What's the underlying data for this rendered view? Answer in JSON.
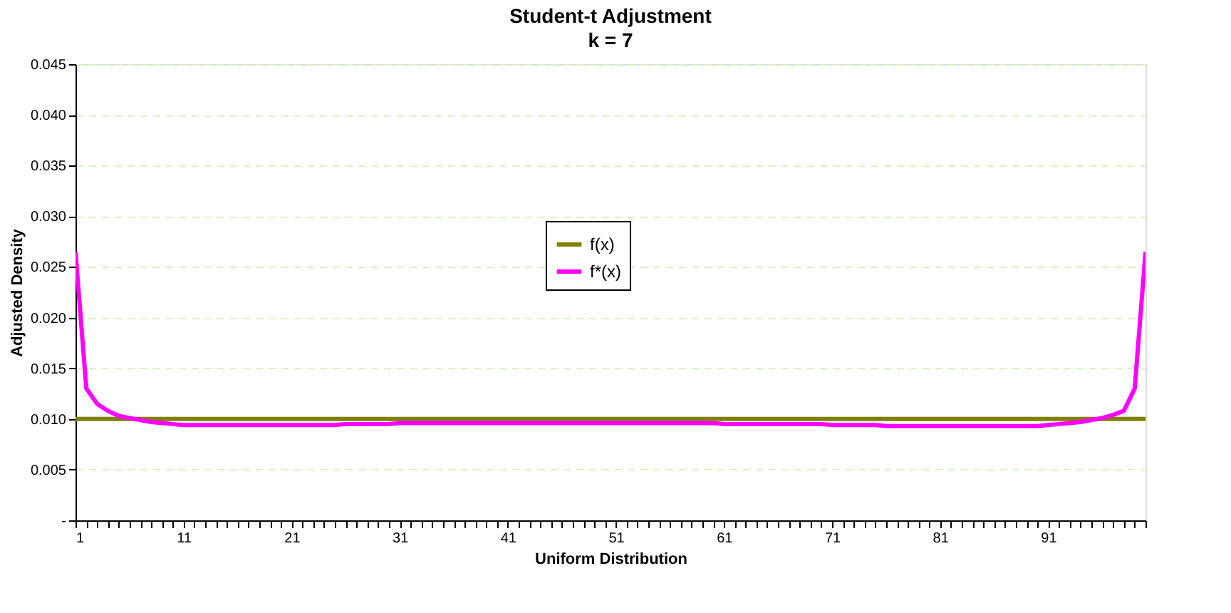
{
  "chart_data": {
    "type": "line",
    "title": "Student-t Adjustment",
    "subtitle": "k = 7",
    "xlabel": "Uniform Distribution",
    "ylabel": "Adjusted Density",
    "categories": [
      "1",
      null,
      null,
      null,
      null,
      null,
      null,
      null,
      null,
      null,
      "11",
      null,
      null,
      null,
      null,
      null,
      null,
      null,
      null,
      null,
      "21",
      null,
      null,
      null,
      null,
      null,
      null,
      null,
      null,
      null,
      "31",
      null,
      null,
      null,
      null,
      null,
      null,
      null,
      null,
      null,
      "41",
      null,
      null,
      null,
      null,
      null,
      null,
      null,
      null,
      null,
      "51",
      null,
      null,
      null,
      null,
      null,
      null,
      null,
      null,
      null,
      "61",
      null,
      null,
      null,
      null,
      null,
      null,
      null,
      null,
      null,
      "71",
      null,
      null,
      null,
      null,
      null,
      null,
      null,
      null,
      null,
      "81",
      null,
      null,
      null,
      null,
      null,
      null,
      null,
      null,
      null,
      "91",
      null,
      null,
      null,
      null,
      null,
      null,
      null,
      null,
      null
    ],
    "series": [
      {
        "name": "f(x)",
        "color": "#808000",
        "values": [
          0.01,
          0.01,
          0.01,
          0.01,
          0.01,
          0.01,
          0.01,
          0.01,
          0.01,
          0.01,
          0.01,
          0.01,
          0.01,
          0.01,
          0.01,
          0.01,
          0.01,
          0.01,
          0.01,
          0.01,
          0.01,
          0.01,
          0.01,
          0.01,
          0.01,
          0.01,
          0.01,
          0.01,
          0.01,
          0.01,
          0.01,
          0.01,
          0.01,
          0.01,
          0.01,
          0.01,
          0.01,
          0.01,
          0.01,
          0.01,
          0.01,
          0.01,
          0.01,
          0.01,
          0.01,
          0.01,
          0.01,
          0.01,
          0.01,
          0.01,
          0.01,
          0.01,
          0.01,
          0.01,
          0.01,
          0.01,
          0.01,
          0.01,
          0.01,
          0.01,
          0.01,
          0.01,
          0.01,
          0.01,
          0.01,
          0.01,
          0.01,
          0.01,
          0.01,
          0.01,
          0.01,
          0.01,
          0.01,
          0.01,
          0.01,
          0.01,
          0.01,
          0.01,
          0.01,
          0.01,
          0.01,
          0.01,
          0.01,
          0.01,
          0.01,
          0.01,
          0.01,
          0.01,
          0.01,
          0.01,
          0.01,
          0.01,
          0.01,
          0.01,
          0.01,
          0.01,
          0.01,
          0.01,
          0.01,
          0.01
        ]
      },
      {
        "name": "f*(x)",
        "color": "#ff00ff",
        "values": [
          0.0265,
          0.013,
          0.0115,
          0.0108,
          0.0103,
          0.0101,
          0.0099,
          0.0097,
          0.0096,
          0.0095,
          0.0094,
          0.0094,
          0.0094,
          0.0094,
          0.0094,
          0.0094,
          0.0094,
          0.0094,
          0.0094,
          0.0094,
          0.0094,
          0.0094,
          0.0094,
          0.0094,
          0.0094,
          0.0095,
          0.0095,
          0.0095,
          0.0095,
          0.0095,
          0.0096,
          0.0096,
          0.0096,
          0.0096,
          0.0096,
          0.0096,
          0.0096,
          0.0096,
          0.0096,
          0.0096,
          0.0096,
          0.0096,
          0.0096,
          0.0096,
          0.0096,
          0.0096,
          0.0096,
          0.0096,
          0.0096,
          0.0096,
          0.0096,
          0.0096,
          0.0096,
          0.0096,
          0.0096,
          0.0096,
          0.0096,
          0.0096,
          0.0096,
          0.0096,
          0.0095,
          0.0095,
          0.0095,
          0.0095,
          0.0095,
          0.0095,
          0.0095,
          0.0095,
          0.0095,
          0.0095,
          0.0094,
          0.0094,
          0.0094,
          0.0094,
          0.0094,
          0.0093,
          0.0093,
          0.0093,
          0.0093,
          0.0093,
          0.0093,
          0.0093,
          0.0093,
          0.0093,
          0.0093,
          0.0093,
          0.0093,
          0.0093,
          0.0093,
          0.0093,
          0.0094,
          0.0095,
          0.0096,
          0.0097,
          0.0099,
          0.0101,
          0.0104,
          0.0108,
          0.013,
          0.0265
        ]
      }
    ],
    "ylim": [
      0,
      0.045
    ],
    "yticks": [
      {
        "value": 0,
        "label": "-"
      },
      {
        "value": 0.005,
        "label": "0.005"
      },
      {
        "value": 0.01,
        "label": "0.010"
      },
      {
        "value": 0.015,
        "label": "0.015"
      },
      {
        "value": 0.02,
        "label": "0.020"
      },
      {
        "value": 0.025,
        "label": "0.025"
      },
      {
        "value": 0.03,
        "label": "0.030"
      },
      {
        "value": 0.035,
        "label": "0.035"
      },
      {
        "value": 0.04,
        "label": "0.040"
      },
      {
        "value": 0.045,
        "label": "0.045"
      }
    ],
    "grid": "y",
    "legend": "top",
    "marker": "none",
    "line_style": "solid"
  }
}
